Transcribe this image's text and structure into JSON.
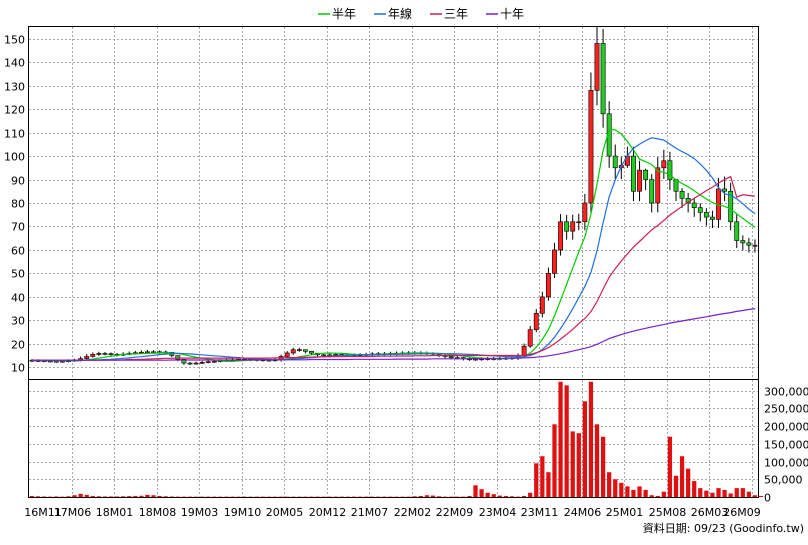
{
  "chart_data": {
    "type": "candlestick",
    "legend": [
      {
        "label": "半年",
        "color": "#00cc00"
      },
      {
        "label": "年線",
        "color": "#1f6fe0"
      },
      {
        "label": "三年",
        "color": "#cc1f4f"
      },
      {
        "label": "十年",
        "color": "#7a1fcc"
      }
    ],
    "price_axis": {
      "ylim": [
        5,
        155
      ],
      "ticks": [
        10,
        20,
        30,
        40,
        50,
        60,
        70,
        80,
        90,
        100,
        110,
        120,
        130,
        140,
        150
      ]
    },
    "volume_axis": {
      "ylim": [
        0,
        330000
      ],
      "ticks": [
        0,
        50000,
        100000,
        150000,
        200000,
        250000,
        300000
      ],
      "tick_labels": [
        "0",
        "50,000",
        "100,000",
        "150,000",
        "200,000",
        "250,000",
        "300,000"
      ]
    },
    "x_labels": [
      "16M11",
      "17M06",
      "18M01",
      "18M08",
      "19M03",
      "19M10",
      "20M05",
      "20M12",
      "21M07",
      "22M02",
      "22M09",
      "23M04",
      "23M11",
      "24M06",
      "25M01",
      "25M08",
      "26M03",
      "26M09"
    ],
    "n_months": 120,
    "candles": {
      "open": [
        13.0,
        12.9,
        12.8,
        12.7,
        12.6,
        12.5,
        12.6,
        12.8,
        13.0,
        13.7,
        14.6,
        15.5,
        15.9,
        15.8,
        15.5,
        15.4,
        15.6,
        15.9,
        16.2,
        16.4,
        16.6,
        16.6,
        16.5,
        16.4,
        15.0,
        13.4,
        11.8,
        11.5,
        11.8,
        12.1,
        12.4,
        12.6,
        12.8,
        13.0,
        13.2,
        13.4,
        13.4,
        13.3,
        13.2,
        13.1,
        13.0,
        13.2,
        14.6,
        16.1,
        17.5,
        17.5,
        16.8,
        16.0,
        15.3,
        15.0,
        15.3,
        15.5,
        15.5,
        15.3,
        15.2,
        15.3,
        15.5,
        15.7,
        15.8,
        15.8,
        15.9,
        16.0,
        16.1,
        16.2,
        16.2,
        16.1,
        16.0,
        15.6,
        15.1,
        14.6,
        14.1,
        14.1,
        13.6,
        13.5,
        13.5,
        13.6,
        13.7,
        13.7,
        13.8,
        13.9,
        14.0,
        15.0,
        19.0,
        26.0,
        33.0,
        40.0,
        50.0,
        60.0,
        72.0,
        68.0,
        72.0,
        72.0,
        80.0,
        128.0,
        148.0,
        118.0,
        100.0,
        95.0,
        96.0,
        100.0,
        85.0,
        94.0,
        90.0,
        80.0,
        95.0,
        98.0,
        90.0,
        85.0,
        82.0,
        80.0,
        78.0,
        76.0,
        74.0,
        73.0,
        86.0,
        85.0,
        72.0,
        64.0,
        63.0,
        62.0
      ],
      "close": [
        12.9,
        12.8,
        12.7,
        12.6,
        12.5,
        12.6,
        12.8,
        13.0,
        13.7,
        14.6,
        15.5,
        15.9,
        15.8,
        15.5,
        15.4,
        15.6,
        15.9,
        16.2,
        16.4,
        16.6,
        16.6,
        16.5,
        16.4,
        15.0,
        13.4,
        11.8,
        11.5,
        11.8,
        12.1,
        12.4,
        12.6,
        12.8,
        13.0,
        13.2,
        13.4,
        13.4,
        13.3,
        13.2,
        13.1,
        13.0,
        13.2,
        14.6,
        16.1,
        17.5,
        17.5,
        16.8,
        16.0,
        15.3,
        15.0,
        15.3,
        15.5,
        15.5,
        15.3,
        15.2,
        15.3,
        15.5,
        15.7,
        15.8,
        15.8,
        15.9,
        16.0,
        16.1,
        16.2,
        16.2,
        16.1,
        16.0,
        15.6,
        15.1,
        14.6,
        14.1,
        14.1,
        13.6,
        13.5,
        13.5,
        13.6,
        13.7,
        13.7,
        13.8,
        13.9,
        14.0,
        15.0,
        19.0,
        26.0,
        33.0,
        40.0,
        50.0,
        60.0,
        72.0,
        68.0,
        72.0,
        72.0,
        80.0,
        128.0,
        148.0,
        118.0,
        100.0,
        95.0,
        96.0,
        100.0,
        85.0,
        94.0,
        90.0,
        80.0,
        95.0,
        98.0,
        90.0,
        85.0,
        82.0,
        80.0,
        78.0,
        76.0,
        74.0,
        73.0,
        86.0,
        85.0,
        72.0,
        64.0,
        63.0,
        62.0,
        62.0
      ],
      "high": [
        13.5,
        13.4,
        13.3,
        13.2,
        13.1,
        13.1,
        13.4,
        13.6,
        14.6,
        15.6,
        16.3,
        16.6,
        16.5,
        16.3,
        16.1,
        16.4,
        16.7,
        17.0,
        17.2,
        17.4,
        17.3,
        17.2,
        17.1,
        16.3,
        14.7,
        12.9,
        12.2,
        12.4,
        12.7,
        13.0,
        13.2,
        13.4,
        13.6,
        13.8,
        14.0,
        14.0,
        13.9,
        13.8,
        13.7,
        13.6,
        13.8,
        15.4,
        16.9,
        18.3,
        18.3,
        17.5,
        16.7,
        16.0,
        15.7,
        16.0,
        16.2,
        16.2,
        16.0,
        15.9,
        16.0,
        16.2,
        16.4,
        16.5,
        16.5,
        16.6,
        16.7,
        16.8,
        16.9,
        16.9,
        16.8,
        16.7,
        16.4,
        15.9,
        15.4,
        14.9,
        14.8,
        14.4,
        14.2,
        14.2,
        14.3,
        14.4,
        14.4,
        14.5,
        14.6,
        14.7,
        15.9,
        20.1,
        27.6,
        34.8,
        42.2,
        52.5,
        63.0,
        75.3,
        74.9,
        75.0,
        75.4,
        83.9,
        135.6,
        155.2,
        154.1,
        123.4,
        104.9,
        99.7,
        104.0,
        104.0,
        98.0,
        94.6,
        92.3,
        99.6,
        102.7,
        101.8,
        89.4,
        86.3,
        84.3,
        82.0,
        79.9,
        77.8,
        76.7,
        90.7,
        91.3,
        88.6,
        75.1,
        66.2,
        65.1,
        64.5
      ],
      "low": [
        12.3,
        12.2,
        12.1,
        12.0,
        11.9,
        11.9,
        12.1,
        12.3,
        12.5,
        13.3,
        14.2,
        14.9,
        15.1,
        14.8,
        14.6,
        14.8,
        15.1,
        15.4,
        15.7,
        15.9,
        15.8,
        15.7,
        15.6,
        14.3,
        12.6,
        11.0,
        10.9,
        11.1,
        11.4,
        11.7,
        11.9,
        12.1,
        12.3,
        12.5,
        12.7,
        12.7,
        12.6,
        12.5,
        12.4,
        12.3,
        12.4,
        12.4,
        13.9,
        15.3,
        16.6,
        15.9,
        15.2,
        14.5,
        14.2,
        14.2,
        14.6,
        14.7,
        14.5,
        14.4,
        14.4,
        14.6,
        14.8,
        14.9,
        14.9,
        15.0,
        15.1,
        15.2,
        15.3,
        15.3,
        15.3,
        15.2,
        14.8,
        14.3,
        13.8,
        13.3,
        13.3,
        12.9,
        12.8,
        12.8,
        12.8,
        12.9,
        12.9,
        13.0,
        13.1,
        13.2,
        13.1,
        14.2,
        18.3,
        25.0,
        31.3,
        38.4,
        48.0,
        57.6,
        64.4,
        64.4,
        68.4,
        68.4,
        76.0,
        121.6,
        112.1,
        95.0,
        90.2,
        90.2,
        95.0,
        80.8,
        80.8,
        85.5,
        76.0,
        76.0,
        90.2,
        85.5,
        80.8,
        77.9,
        76.0,
        74.1,
        72.2,
        70.3,
        69.3,
        69.3,
        80.8,
        68.4,
        60.8,
        59.8,
        58.9,
        58.9
      ],
      "ma_half": [
        13.0,
        13.0,
        12.9,
        12.9,
        12.8,
        12.8,
        12.7,
        12.7,
        12.9,
        13.1,
        13.5,
        13.9,
        14.3,
        14.7,
        15.1,
        15.5,
        15.6,
        15.7,
        15.8,
        15.9,
        16.0,
        16.1,
        16.2,
        16.1,
        15.9,
        15.4,
        14.8,
        14.3,
        13.9,
        13.5,
        13.1,
        12.7,
        12.5,
        12.5,
        12.7,
        12.9,
        13.0,
        13.1,
        13.2,
        13.2,
        13.2,
        13.2,
        13.5,
        13.9,
        14.4,
        14.9,
        15.3,
        15.7,
        16.0,
        16.1,
        16.0,
        15.9,
        15.7,
        15.5,
        15.4,
        15.4,
        15.4,
        15.5,
        15.6,
        15.7,
        15.8,
        15.9,
        16.0,
        16.1,
        16.1,
        16.1,
        16.0,
        15.9,
        15.7,
        15.4,
        15.1,
        14.8,
        14.4,
        14.1,
        13.9,
        13.8,
        13.7,
        13.7,
        13.7,
        13.8,
        14.0,
        14.5,
        16.1,
        18.6,
        21.8,
        26.1,
        31.9,
        38.6,
        45.3,
        52.2,
        59.2,
        65.6,
        75.2,
        88.0,
        102.4,
        111.3,
        111.2,
        109.4,
        106.2,
        102.6,
        98.7,
        97.6,
        96.4,
        93.6,
        93.1,
        92.0,
        89.9,
        88.3,
        86.9,
        85.2,
        83.4,
        81.7,
        80.2,
        79.1,
        78.6,
        77.4,
        75.4,
        73.5,
        71.5,
        69.6
      ],
      "ma_year": [
        13.0,
        13.0,
        13.0,
        12.9,
        12.9,
        12.9,
        12.9,
        12.9,
        12.9,
        13.0,
        13.1,
        13.2,
        13.3,
        13.4,
        13.6,
        13.8,
        14.0,
        14.3,
        14.5,
        14.8,
        15.1,
        15.4,
        15.6,
        15.8,
        15.9,
        15.8,
        15.7,
        15.5,
        15.3,
        15.1,
        14.9,
        14.7,
        14.5,
        14.3,
        14.1,
        13.9,
        13.7,
        13.5,
        13.4,
        13.3,
        13.2,
        13.2,
        13.3,
        13.5,
        13.7,
        13.9,
        14.1,
        14.3,
        14.5,
        14.7,
        14.9,
        15.0,
        15.1,
        15.2,
        15.3,
        15.4,
        15.4,
        15.4,
        15.4,
        15.5,
        15.5,
        15.6,
        15.6,
        15.7,
        15.7,
        15.7,
        15.8,
        15.8,
        15.8,
        15.8,
        15.7,
        15.6,
        15.5,
        15.4,
        15.2,
        15.0,
        14.9,
        14.7,
        14.6,
        14.5,
        14.4,
        14.5,
        15.0,
        16.0,
        17.6,
        19.8,
        22.8,
        26.5,
        30.5,
        34.9,
        39.7,
        44.5,
        50.4,
        59.6,
        71.5,
        82.7,
        89.8,
        95.6,
        100.1,
        103.4,
        105.0,
        106.6,
        107.8,
        107.3,
        106.8,
        105.1,
        103.3,
        101.9,
        100.6,
        98.9,
        96.6,
        93.9,
        90.7,
        86.5,
        84.0,
        83.3,
        81.8,
        79.7,
        77.4,
        75.4
      ],
      "ma_3year": [
        13.0,
        13.0,
        13.0,
        13.0,
        13.0,
        13.0,
        13.0,
        13.0,
        13.0,
        13.0,
        13.0,
        13.0,
        13.0,
        13.1,
        13.1,
        13.2,
        13.3,
        13.3,
        13.4,
        13.5,
        13.6,
        13.7,
        13.8,
        13.8,
        13.9,
        13.9,
        13.9,
        13.9,
        13.9,
        13.9,
        13.9,
        13.9,
        13.9,
        13.9,
        13.9,
        13.9,
        13.9,
        13.9,
        13.9,
        13.9,
        14.0,
        14.0,
        14.1,
        14.1,
        14.2,
        14.3,
        14.3,
        14.4,
        14.4,
        14.5,
        14.5,
        14.5,
        14.6,
        14.6,
        14.6,
        14.6,
        14.6,
        14.7,
        14.7,
        14.7,
        14.8,
        14.8,
        14.8,
        14.9,
        14.9,
        14.9,
        15.0,
        15.0,
        15.0,
        15.0,
        15.0,
        15.0,
        15.0,
        15.0,
        15.0,
        15.0,
        15.0,
        15.0,
        15.0,
        15.0,
        15.0,
        15.1,
        15.5,
        16.2,
        17.1,
        18.4,
        20.0,
        22.0,
        24.0,
        26.2,
        28.6,
        30.8,
        33.7,
        38.0,
        43.3,
        48.4,
        52.0,
        55.3,
        58.3,
        61.2,
        63.6,
        66.1,
        68.6,
        70.4,
        72.6,
        74.9,
        76.7,
        78.6,
        80.4,
        82.0,
        83.6,
        85.3,
        86.7,
        88.5,
        90.0,
        91.2,
        82.5,
        83.5,
        83.2,
        82.9
      ],
      "ma_10year": [
        13.0,
        13.0,
        13.0,
        13.0,
        13.0,
        13.0,
        13.0,
        13.0,
        13.0,
        13.0,
        13.0,
        13.0,
        13.0,
        13.0,
        13.0,
        13.0,
        13.0,
        13.0,
        13.0,
        13.0,
        13.0,
        13.0,
        13.0,
        13.1,
        13.1,
        13.1,
        13.1,
        13.1,
        13.1,
        13.1,
        13.1,
        13.1,
        13.1,
        13.1,
        13.1,
        13.1,
        13.2,
        13.2,
        13.2,
        13.2,
        13.2,
        13.2,
        13.2,
        13.2,
        13.2,
        13.2,
        13.3,
        13.3,
        13.3,
        13.3,
        13.3,
        13.3,
        13.3,
        13.4,
        13.4,
        13.4,
        13.4,
        13.4,
        13.4,
        13.4,
        13.5,
        13.5,
        13.5,
        13.5,
        13.5,
        13.5,
        13.6,
        13.6,
        13.6,
        13.6,
        13.6,
        13.6,
        13.7,
        13.7,
        13.7,
        13.7,
        13.8,
        13.8,
        13.8,
        13.9,
        13.9,
        14.0,
        14.1,
        14.3,
        14.5,
        14.9,
        15.3,
        15.8,
        16.3,
        16.9,
        17.5,
        18.1,
        18.8,
        19.8,
        21.0,
        22.2,
        23.1,
        23.9,
        24.7,
        25.4,
        26.0,
        26.6,
        27.2,
        27.7,
        28.2,
        28.8,
        29.3,
        29.7,
        30.2,
        30.6,
        31.1,
        31.5,
        32.0,
        32.5,
        32.9,
        33.3,
        33.8,
        34.2,
        34.6,
        35.0
      ]
    },
    "volume": [
      3000,
      2000,
      1500,
      1000,
      1500,
      1000,
      2000,
      5000,
      9000,
      6000,
      3000,
      2000,
      1500,
      1500,
      1500,
      2000,
      2500,
      3000,
      3500,
      6000,
      5000,
      3000,
      2000,
      1500,
      1000,
      1000,
      1000,
      1000,
      1000,
      1000,
      1000,
      1000,
      1000,
      1000,
      1000,
      1000,
      1000,
      1000,
      1000,
      1000,
      1000,
      1000,
      1000,
      1000,
      1000,
      1000,
      1000,
      1000,
      1000,
      1000,
      1000,
      1000,
      1000,
      1000,
      1000,
      1000,
      1000,
      1000,
      1000,
      1000,
      1000,
      1000,
      1000,
      2000,
      3000,
      5000,
      4000,
      2000,
      1000,
      1000,
      1000,
      1000,
      3000,
      33000,
      22000,
      12000,
      8000,
      4000,
      3000,
      2000,
      1000,
      3000,
      12000,
      95000,
      115000,
      70000,
      205000,
      325000,
      315000,
      185000,
      180000,
      270000,
      325000,
      205000,
      170000,
      70000,
      50000,
      40000,
      30000,
      20000,
      30000,
      20000,
      5000,
      3000,
      15000,
      170000,
      60000,
      115000,
      80000,
      45000,
      25000,
      18000,
      12000,
      25000,
      20000,
      10000,
      25000,
      25000,
      15000,
      5000,
      3000
    ]
  },
  "footer": {
    "source_label": "資料日期: 09/23 (Goodinfo.tw)"
  }
}
